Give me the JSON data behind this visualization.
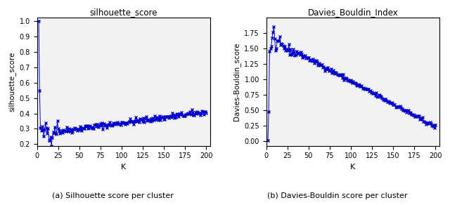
{
  "title_left": "silhouette_score",
  "title_right": "Davies_Bouldin_Index",
  "xlabel": "K",
  "ylabel_left": "silhouette_score",
  "ylabel_right": "Davies-Bouldin_score",
  "caption_left": "(a) Silhouette score per cluster",
  "caption_right": "(b) Davies-Bouldin score per cluster",
  "k_min": 2,
  "k_max": 200,
  "color": "#0000cc",
  "marker": "x",
  "markersize": 2.5,
  "linewidth": 0.7,
  "background": "#ffffff",
  "ax_background": "#f2f2f2",
  "xticks": [
    0,
    25,
    50,
    75,
    100,
    125,
    150,
    175,
    200
  ],
  "sil_ylim": [
    0.19,
    1.02
  ],
  "db_ylim": [
    -0.08,
    2.0
  ],
  "db_yticks": [
    0.0,
    0.25,
    0.5,
    0.75,
    1.0,
    1.25,
    1.5,
    1.75
  ]
}
